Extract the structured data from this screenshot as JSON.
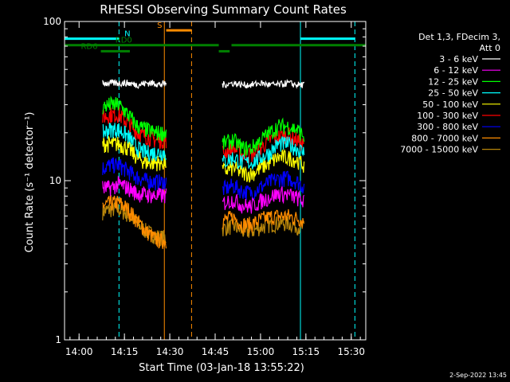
{
  "chart_data": {
    "type": "line",
    "title": "RHESSI Observing Summary Count Rates",
    "xlabel": "Start Time (03-Jan-18 13:55:22)",
    "ylabel": "Count Rate (s⁻¹ detector⁻¹)",
    "yscale": "log",
    "xlim": [
      13.92,
      15.58
    ],
    "ylim": [
      1,
      100
    ],
    "x_unit": "hours (UT)",
    "x_ticks": [
      {
        "x": 14.0,
        "label": "14:00"
      },
      {
        "x": 14.25,
        "label": "14:15"
      },
      {
        "x": 14.5,
        "label": "14:30"
      },
      {
        "x": 14.75,
        "label": "14:45"
      },
      {
        "x": 15.0,
        "label": "15:00"
      },
      {
        "x": 15.25,
        "label": "15:15"
      },
      {
        "x": 15.5,
        "label": "15:30"
      }
    ],
    "y_ticks": [
      {
        "y": 1,
        "label": "1"
      },
      {
        "y": 10,
        "label": "10"
      },
      {
        "y": 100,
        "label": "100"
      }
    ],
    "legend_header": [
      "Det 1,3, FDecim 3,",
      "Att 0"
    ],
    "legend_position": "right",
    "series": [
      {
        "name": "3 - 6 keV",
        "color": "#ffffff",
        "segments": [
          {
            "x": [
              14.13,
              14.17,
              14.22,
              14.27,
              14.32,
              14.37,
              14.42,
              14.45,
              14.48
            ],
            "y": [
              41,
              41,
              41,
              41,
              40,
              41,
              41,
              40,
              41
            ]
          },
          {
            "x": [
              14.79,
              14.85,
              14.9,
              14.95,
              15.0,
              15.05,
              15.1,
              15.15,
              15.2,
              15.24
            ],
            "y": [
              40,
              41,
              40,
              40,
              41,
              40,
              40,
              41,
              40,
              40
            ]
          }
        ]
      },
      {
        "name": "6 - 12 keV",
        "color": "#ff00ff",
        "segments": [
          {
            "x": [
              14.13,
              14.17,
              14.22,
              14.27,
              14.32,
              14.37,
              14.42,
              14.45,
              14.48
            ],
            "y": [
              9.0,
              9.0,
              9.5,
              9.0,
              8.3,
              8.2,
              8.0,
              8.1,
              8.0
            ]
          },
          {
            "x": [
              14.79,
              14.85,
              14.9,
              14.95,
              15.0,
              15.05,
              15.1,
              15.15,
              15.2,
              15.24
            ],
            "y": [
              7.2,
              7.6,
              7.0,
              6.9,
              7.4,
              7.9,
              8.3,
              8.2,
              7.8,
              7.4
            ]
          }
        ]
      },
      {
        "name": "12 - 25 keV",
        "color": "#00ff00",
        "segments": [
          {
            "x": [
              14.13,
              14.17,
              14.22,
              14.27,
              14.32,
              14.37,
              14.42,
              14.45,
              14.48
            ],
            "y": [
              29,
              30,
              30,
              26,
              22,
              21,
              20,
              20,
              20
            ]
          },
          {
            "x": [
              14.79,
              14.85,
              14.9,
              14.95,
              15.0,
              15.05,
              15.1,
              15.15,
              15.2,
              15.24
            ],
            "y": [
              17,
              18,
              16,
              16,
              18,
              20,
              22,
              22,
              21,
              19
            ]
          }
        ]
      },
      {
        "name": "25 - 50 keV",
        "color": "#00ffff",
        "segments": [
          {
            "x": [
              14.13,
              14.17,
              14.22,
              14.27,
              14.32,
              14.37,
              14.42,
              14.45,
              14.48
            ],
            "y": [
              20,
              21,
              21,
              19,
              16,
              15,
              15,
              15,
              15
            ]
          },
          {
            "x": [
              14.79,
              14.85,
              14.9,
              14.95,
              15.0,
              15.05,
              15.1,
              15.15,
              15.2,
              15.24
            ],
            "y": [
              13,
              14,
              13,
              13,
              14,
              15,
              17,
              17,
              16,
              15
            ]
          }
        ]
      },
      {
        "name": "50 - 100 keV",
        "color": "#ffff00",
        "segments": [
          {
            "x": [
              14.13,
              14.17,
              14.22,
              14.27,
              14.32,
              14.37,
              14.42,
              14.45,
              14.48
            ],
            "y": [
              17,
              17,
              17,
              16,
              14,
              13,
              13,
              13,
              13
            ]
          },
          {
            "x": [
              14.79,
              14.85,
              14.9,
              14.95,
              15.0,
              15.05,
              15.1,
              15.15,
              15.2,
              15.24
            ],
            "y": [
              11.5,
              12,
              11.2,
              11,
              12,
              13,
              14,
              14,
              13.5,
              12.5
            ]
          }
        ]
      },
      {
        "name": "100 - 300 keV",
        "color": "#ff0000",
        "segments": [
          {
            "x": [
              14.13,
              14.17,
              14.22,
              14.27,
              14.32,
              14.37,
              14.42,
              14.45,
              14.48
            ],
            "y": [
              25,
              26,
              26,
              23,
              20,
              19,
              18,
              18,
              18
            ]
          },
          {
            "x": [
              14.79,
              14.85,
              14.9,
              14.95,
              15.0,
              15.05,
              15.1,
              15.15,
              15.2,
              15.24
            ],
            "y": [
              15,
              16,
              14.5,
              14.5,
              16,
              18,
              19,
              19.5,
              18,
              16.5
            ]
          }
        ]
      },
      {
        "name": "300 - 800 keV",
        "color": "#0000ff",
        "segments": [
          {
            "x": [
              14.13,
              14.17,
              14.22,
              14.27,
              14.32,
              14.37,
              14.42,
              14.45,
              14.48
            ],
            "y": [
              12,
              12.5,
              12.5,
              11.5,
              10.5,
              10,
              9.8,
              9.8,
              9.8
            ]
          },
          {
            "x": [
              14.79,
              14.85,
              14.9,
              14.95,
              15.0,
              15.05,
              15.1,
              15.15,
              15.2,
              15.24
            ],
            "y": [
              8.8,
              9.3,
              8.6,
              8.4,
              9.1,
              9.8,
              10.3,
              10.4,
              9.9,
              9.2
            ]
          }
        ]
      },
      {
        "name": "800 - 7000 keV",
        "color": "#ff8c00",
        "segments": [
          {
            "x": [
              14.13,
              14.17,
              14.22,
              14.27,
              14.32,
              14.37,
              14.42,
              14.45,
              14.48
            ],
            "y": [
              7.0,
              7.2,
              7.3,
              6.6,
              5.6,
              4.8,
              4.3,
              4.2,
              4.2
            ]
          },
          {
            "x": [
              14.79,
              14.85,
              14.9,
              14.95,
              15.0,
              15.05,
              15.1,
              15.15,
              15.2,
              15.24
            ],
            "y": [
              5.6,
              5.9,
              5.3,
              5.3,
              5.7,
              5.9,
              6.0,
              6.0,
              5.8,
              5.6
            ]
          }
        ]
      },
      {
        "name": "7000 - 15000 keV",
        "color": "#b8860b",
        "segments": [
          {
            "x": [
              14.13,
              14.17,
              14.22,
              14.27,
              14.32,
              14.37,
              14.42,
              14.45,
              14.48
            ],
            "y": [
              6.4,
              6.6,
              6.6,
              6.1,
              5.4,
              4.8,
              4.5,
              4.4,
              4.4
            ]
          },
          {
            "x": [
              14.79,
              14.85,
              14.9,
              14.95,
              15.0,
              15.05,
              15.1,
              15.15,
              15.2,
              15.24
            ],
            "y": [
              5.0,
              5.2,
              4.8,
              4.8,
              5.1,
              5.3,
              5.4,
              5.4,
              5.2,
              5.0
            ]
          }
        ]
      }
    ],
    "annotations": {
      "vertical_lines": [
        {
          "x": 13.92,
          "color": "#00ffff",
          "style": "solid"
        },
        {
          "x": 14.22,
          "color": "#00ffff",
          "style": "dashed"
        },
        {
          "x": 14.47,
          "color": "#ff8c00",
          "style": "solid"
        },
        {
          "x": 14.62,
          "color": "#ff8c00",
          "style": "dashed"
        },
        {
          "x": 15.22,
          "color": "#00ffff",
          "style": "solid"
        },
        {
          "x": 15.52,
          "color": "#00ffff",
          "style": "dashed"
        }
      ],
      "bars": [
        {
          "label": "N",
          "color": "#00ffff",
          "x0": 13.92,
          "x1": 14.22,
          "y": 78,
          "label_at": 14.25
        },
        {
          "label": "N",
          "color": "#00ffff",
          "x0": 15.22,
          "x1": 15.52,
          "y": 78,
          "label_at": null
        },
        {
          "label": "S",
          "color": "#ff8c00",
          "x0": 14.48,
          "x1": 14.62,
          "y": 88,
          "label_at": 14.43
        },
        {
          "label": "RD0",
          "color": "#008000",
          "x0": 13.92,
          "x1": 14.77,
          "y": 71,
          "label_at": 14.2
        },
        {
          "label": "",
          "color": "#008000",
          "x0": 14.84,
          "x1": 15.58,
          "y": 71,
          "label_at": null
        },
        {
          "label": "",
          "color": "#008000",
          "x0": 14.77,
          "x1": 14.83,
          "y": 65,
          "label_at": null
        },
        {
          "label": "RD6",
          "color": "#008000",
          "x0": 14.12,
          "x1": 14.28,
          "y": 65,
          "label_at": 14.01
        }
      ]
    }
  },
  "footer": {
    "timestamp": "2-Sep-2022 13:45"
  }
}
